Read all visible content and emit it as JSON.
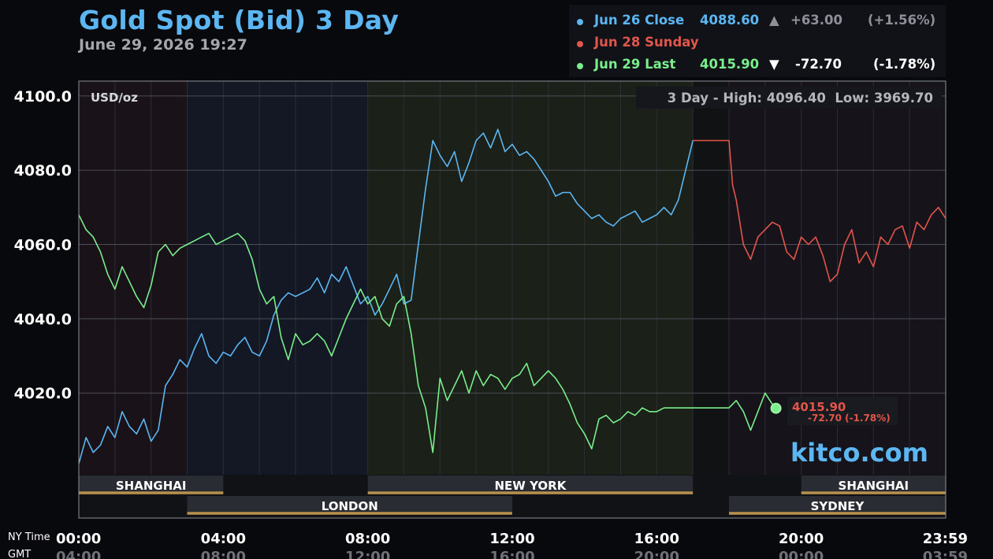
{
  "header": {
    "title": "Gold Spot (Bid) 3 Day",
    "subtitle": "June 29, 2026 19:27"
  },
  "legend": [
    {
      "label": "Jun 26 Close",
      "value": "4088.60",
      "arrow": "▲",
      "change": "+63.00",
      "pct": "(+1.56%)",
      "color": "#5bb6f2",
      "change_color": "#8d9096"
    },
    {
      "label": "Jun 28 Sunday",
      "value": "",
      "arrow": "",
      "change": "",
      "pct": "",
      "color": "#e2554a",
      "change_color": "#e2554a"
    },
    {
      "label": "Jun 29 Last",
      "value": "4015.90",
      "arrow": "▼",
      "change": "-72.70",
      "pct": "(-1.78%)",
      "color": "#79ee8a",
      "change_color": "#ffffff"
    }
  ],
  "stats": {
    "text": "3 Day - High: 4096.40  Low: 3969.70"
  },
  "unit_label": "USD/oz",
  "last_marker": {
    "value": "4015.90",
    "change": "-72.70 (-1.78%)"
  },
  "sessions": {
    "top": [
      {
        "name": "SHANGHAI",
        "start": 0,
        "end": 4
      },
      {
        "name": "NEW YORK",
        "start": 8,
        "end": 17
      },
      {
        "name": "SHANGHAI",
        "start": 20,
        "end": 24
      }
    ],
    "bottom": [
      {
        "name": "LONDON",
        "start": 3,
        "end": 12
      },
      {
        "name": "SYDNEY",
        "start": 18,
        "end": 24
      }
    ]
  },
  "axis_labels": {
    "ny": "NY Time",
    "gmt": "GMT"
  },
  "brand": "kitco.com",
  "colors": {
    "jun26": "#5bb6f2",
    "jun28": "#e2554a",
    "jun29": "#79ee8a",
    "session_line": "#b8914e"
  },
  "chart_data": {
    "type": "line",
    "title": "Gold Spot (Bid) 3 Day",
    "ylabel": "USD/oz",
    "xlabel": "NY Time",
    "ylim": [
      3998,
      4104
    ],
    "xlim": [
      0,
      24
    ],
    "yticks": [
      "4100.0",
      "4080.0",
      "4060.0",
      "4040.0",
      "4020.0"
    ],
    "ytick_values": [
      4100,
      4080,
      4060,
      4040,
      4020
    ],
    "xticks_ny": [
      "00:00",
      "04:00",
      "08:00",
      "12:00",
      "16:00",
      "20:00",
      "23:59"
    ],
    "xticks_gmt": [
      "04:00",
      "08:00",
      "12:00",
      "16:00",
      "20:00",
      "00:00",
      "03:59"
    ],
    "xtick_values": [
      0,
      4,
      8,
      12,
      16,
      20,
      24
    ],
    "grid": true,
    "series": [
      {
        "name": "Jun 26 Close",
        "color": "#5bb6f2",
        "x": [
          0,
          0.2,
          0.4,
          0.6,
          0.8,
          1.0,
          1.2,
          1.4,
          1.6,
          1.8,
          2.0,
          2.2,
          2.4,
          2.6,
          2.8,
          3.0,
          3.2,
          3.4,
          3.6,
          3.8,
          4.0,
          4.2,
          4.4,
          4.6,
          4.8,
          5.0,
          5.2,
          5.4,
          5.6,
          5.8,
          6.0,
          6.2,
          6.4,
          6.6,
          6.8,
          7.0,
          7.2,
          7.4,
          7.6,
          7.8,
          8.0,
          8.2,
          8.4,
          8.6,
          8.8,
          9.0,
          9.2,
          9.4,
          9.6,
          9.8,
          10.0,
          10.2,
          10.4,
          10.6,
          10.8,
          11.0,
          11.2,
          11.4,
          11.6,
          11.8,
          12.0,
          12.2,
          12.4,
          12.6,
          12.8,
          13.0,
          13.2,
          13.4,
          13.6,
          13.8,
          14.0,
          14.2,
          14.4,
          14.6,
          14.8,
          15.0,
          15.2,
          15.4,
          15.6,
          15.8,
          16.0,
          16.2,
          16.4,
          16.6,
          16.8,
          17.0
        ],
        "y": [
          4001,
          4008,
          4004,
          4006,
          4011,
          4008,
          4015,
          4011,
          4009,
          4013,
          4007,
          4010,
          4022,
          4025,
          4029,
          4027,
          4032,
          4036,
          4030,
          4028,
          4031,
          4030,
          4033,
          4035,
          4031,
          4030,
          4034,
          4041,
          4045,
          4047,
          4046,
          4047,
          4048,
          4051,
          4047,
          4052,
          4050,
          4054,
          4049,
          4044,
          4046,
          4041,
          4044,
          4048,
          4052,
          4044,
          4045,
          4060,
          4075,
          4088,
          4084,
          4081,
          4085,
          4077,
          4082,
          4088,
          4090,
          4086,
          4091,
          4085,
          4087,
          4084,
          4085,
          4083,
          4080,
          4077,
          4073,
          4074,
          4074,
          4071,
          4069,
          4067,
          4068,
          4066,
          4065,
          4067,
          4068,
          4069,
          4066,
          4067,
          4068,
          4070,
          4068,
          4072,
          4080,
          4088
        ]
      },
      {
        "name": "Jun 28 Sunday",
        "color": "#e2554a",
        "x": [
          17,
          17.5,
          18,
          18.1,
          18.2,
          18.4,
          18.6,
          18.8,
          19.0,
          19.2,
          19.4,
          19.6,
          19.8,
          20.0,
          20.2,
          20.4,
          20.6,
          20.8,
          21.0,
          21.2,
          21.4,
          21.6,
          21.8,
          22.0,
          22.2,
          22.4,
          22.6,
          22.8,
          23.0,
          23.2,
          23.4,
          23.6,
          23.8,
          24.0
        ],
        "y": [
          4088,
          4088,
          4088,
          4076,
          4072,
          4060,
          4056,
          4062,
          4064,
          4066,
          4065,
          4058,
          4056,
          4062,
          4060,
          4062,
          4057,
          4050,
          4052,
          4060,
          4064,
          4055,
          4058,
          4054,
          4062,
          4060,
          4064,
          4065,
          4059,
          4066,
          4064,
          4068,
          4070,
          4067
        ]
      },
      {
        "name": "Jun 29 Last",
        "color": "#79ee8a",
        "x": [
          0,
          0.2,
          0.4,
          0.6,
          0.8,
          1.0,
          1.2,
          1.4,
          1.6,
          1.8,
          2.0,
          2.2,
          2.4,
          2.6,
          2.8,
          3.0,
          3.2,
          3.4,
          3.6,
          3.8,
          4.0,
          4.2,
          4.4,
          4.6,
          4.8,
          5.0,
          5.2,
          5.4,
          5.6,
          5.8,
          6.0,
          6.2,
          6.4,
          6.6,
          6.8,
          7.0,
          7.2,
          7.4,
          7.6,
          7.8,
          8.0,
          8.2,
          8.4,
          8.6,
          8.8,
          9.0,
          9.2,
          9.4,
          9.6,
          9.8,
          10.0,
          10.2,
          10.4,
          10.6,
          10.8,
          11.0,
          11.2,
          11.4,
          11.6,
          11.8,
          12.0,
          12.2,
          12.4,
          12.6,
          12.8,
          13.0,
          13.2,
          13.4,
          13.6,
          13.8,
          14.0,
          14.2,
          14.4,
          14.6,
          14.8,
          15.0,
          15.2,
          15.4,
          15.6,
          15.8,
          16.0,
          16.2,
          16.4,
          16.6,
          16.8,
          17.0,
          17.5,
          18.0,
          18.2,
          18.4,
          18.6,
          18.8,
          19.0,
          19.2,
          19.3
        ],
        "y": [
          4068,
          4064,
          4062,
          4058,
          4052,
          4048,
          4054,
          4050,
          4046,
          4043,
          4049,
          4058,
          4060,
          4057,
          4059,
          4060,
          4061,
          4062,
          4063,
          4060,
          4061,
          4062,
          4063,
          4061,
          4056,
          4048,
          4044,
          4046,
          4035,
          4029,
          4036,
          4033,
          4034,
          4036,
          4034,
          4030,
          4035,
          4040,
          4044,
          4048,
          4044,
          4046,
          4040,
          4038,
          4044,
          4046,
          4036,
          4022,
          4016,
          4004,
          4024,
          4018,
          4022,
          4026,
          4020,
          4026,
          4022,
          4025,
          4024,
          4021,
          4024,
          4025,
          4028,
          4022,
          4024,
          4026,
          4024,
          4021,
          4017,
          4012,
          4009,
          4005,
          4013,
          4014,
          4012,
          4013,
          4015,
          4014,
          4016,
          4015,
          4015,
          4016,
          4016,
          4016,
          4016,
          4016,
          4016,
          4016,
          4018,
          4015,
          4010,
          4015,
          4020,
          4017,
          4015.9
        ]
      }
    ]
  }
}
